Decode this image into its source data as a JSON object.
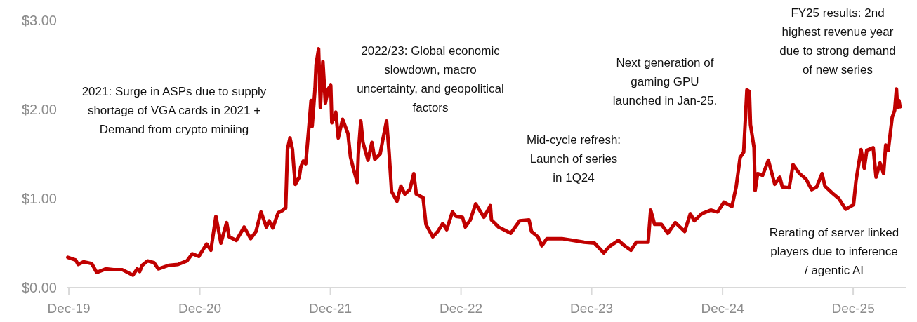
{
  "chart_data": {
    "type": "line",
    "color": "#c00000",
    "xlim": [
      "2019-11-25",
      "2026-04-27"
    ],
    "xticks": [
      {
        "value": "2019-12-01",
        "label": "Dec-19"
      },
      {
        "value": "2020-12-01",
        "label": "Dec-20"
      },
      {
        "value": "2021-12-01",
        "label": "Dec-21"
      },
      {
        "value": "2022-12-01",
        "label": "Dec-22"
      },
      {
        "value": "2023-12-01",
        "label": "Dec-23"
      },
      {
        "value": "2024-12-01",
        "label": "Dec-24"
      },
      {
        "value": "2025-12-01",
        "label": "Dec-25"
      }
    ],
    "ylim": [
      0,
      3
    ],
    "yticks": [
      {
        "value": 0,
        "label": "$0.00"
      },
      {
        "value": 1,
        "label": "$1.00"
      },
      {
        "value": 2,
        "label": "$2.00"
      },
      {
        "value": 3,
        "label": "$3.00"
      }
    ],
    "grid": false,
    "marker": "none",
    "line_style": "solid",
    "x": [
      "2019-11-28",
      "2019-12-20",
      "2019-12-27",
      "2020-01-11",
      "2020-02-03",
      "2020-02-17",
      "2020-03-13",
      "2020-04-04",
      "2020-04-29",
      "2020-05-28",
      "2020-06-09",
      "2020-06-16",
      "2020-06-23",
      "2020-07-08",
      "2020-07-26",
      "2020-08-07",
      "2020-09-05",
      "2020-10-01",
      "2020-10-26",
      "2020-11-10",
      "2020-11-28",
      "2020-12-20",
      "2021-01-01",
      "2021-01-15",
      "2021-01-29",
      "2021-02-14",
      "2021-02-21",
      "2021-03-13",
      "2021-04-04",
      "2021-04-22",
      "2021-05-07",
      "2021-05-21",
      "2021-06-05",
      "2021-06-13",
      "2021-06-23",
      "2021-07-08",
      "2021-07-22",
      "2021-07-26",
      "2021-07-29",
      "2021-08-03",
      "2021-08-10",
      "2021-08-17",
      "2021-08-21",
      "2021-08-25",
      "2021-09-05",
      "2021-09-09",
      "2021-09-16",
      "2021-09-23",
      "2021-10-01",
      "2021-10-08",
      "2021-10-11",
      "2021-10-19",
      "2021-10-22",
      "2021-10-29",
      "2021-11-03",
      "2021-11-07",
      "2021-11-10",
      "2021-11-17",
      "2021-11-25",
      "2021-12-02",
      "2021-12-05",
      "2021-12-16",
      "2021-12-23",
      "2022-01-04",
      "2022-01-19",
      "2022-01-26",
      "2022-02-03",
      "2022-02-14",
      "2022-02-17",
      "2022-02-24",
      "2022-03-02",
      "2022-03-16",
      "2022-03-27",
      "2022-04-04",
      "2022-04-19",
      "2022-04-26",
      "2022-05-07",
      "2022-05-14",
      "2022-05-21",
      "2022-06-05",
      "2022-06-16",
      "2022-06-27",
      "2022-07-11",
      "2022-07-22",
      "2022-07-29",
      "2022-08-17",
      "2022-08-25",
      "2022-09-13",
      "2022-09-27",
      "2022-10-11",
      "2022-10-22",
      "2022-11-07",
      "2022-11-17",
      "2022-12-05",
      "2022-12-13",
      "2022-12-27",
      "2023-01-11",
      "2023-02-03",
      "2023-02-21",
      "2023-02-24",
      "2023-03-16",
      "2023-04-19",
      "2023-05-14",
      "2023-06-09",
      "2023-06-16",
      "2023-07-04",
      "2023-07-15",
      "2023-07-29",
      "2023-09-09",
      "2023-10-11",
      "2023-11-10",
      "2023-12-09",
      "2024-01-04",
      "2024-01-19",
      "2024-02-14",
      "2024-03-02",
      "2024-03-20",
      "2024-04-04",
      "2024-05-07",
      "2024-05-14",
      "2024-05-25",
      "2024-06-13",
      "2024-07-01",
      "2024-07-22",
      "2024-08-17",
      "2024-09-02",
      "2024-09-13",
      "2024-10-04",
      "2024-10-29",
      "2024-11-17",
      "2024-12-05",
      "2024-12-27",
      "2025-01-08",
      "2025-01-19",
      "2025-01-29",
      "2025-02-07",
      "2025-02-14",
      "2025-02-17",
      "2025-02-27",
      "2025-03-02",
      "2025-03-09",
      "2025-03-23",
      "2025-04-08",
      "2025-04-26",
      "2025-05-10",
      "2025-05-17",
      "2025-06-05",
      "2025-06-16",
      "2025-07-04",
      "2025-07-22",
      "2025-08-07",
      "2025-08-21",
      "2025-09-05",
      "2025-09-13",
      "2025-10-04",
      "2025-10-22",
      "2025-11-10",
      "2025-12-02",
      "2025-12-09",
      "2025-12-23",
      "2026-01-01",
      "2026-01-08",
      "2026-01-26",
      "2026-02-03",
      "2026-02-14",
      "2026-02-24",
      "2026-03-02",
      "2026-03-09",
      "2026-03-20",
      "2026-03-27",
      "2026-04-01",
      "2026-04-04",
      "2026-04-08",
      "2026-04-11"
    ],
    "values": [
      0.34,
      0.31,
      0.26,
      0.29,
      0.27,
      0.17,
      0.21,
      0.2,
      0.2,
      0.14,
      0.21,
      0.18,
      0.25,
      0.3,
      0.28,
      0.21,
      0.25,
      0.26,
      0.3,
      0.38,
      0.35,
      0.49,
      0.42,
      0.8,
      0.5,
      0.73,
      0.57,
      0.53,
      0.68,
      0.55,
      0.63,
      0.85,
      0.68,
      0.75,
      0.67,
      0.84,
      0.87,
      0.89,
      0.89,
      1.55,
      1.68,
      1.55,
      1.34,
      1.16,
      1.24,
      1.35,
      1.42,
      1.39,
      1.76,
      2.1,
      1.81,
      2.23,
      2.5,
      2.68,
      2.02,
      2.36,
      2.54,
      2.07,
      2.23,
      2.27,
      1.85,
      1.97,
      1.68,
      1.89,
      1.73,
      1.47,
      1.34,
      1.18,
      1.5,
      1.87,
      1.63,
      1.43,
      1.63,
      1.44,
      1.5,
      1.65,
      1.87,
      1.52,
      1.08,
      0.97,
      1.14,
      1.05,
      1.1,
      1.28,
      1.05,
      1.01,
      0.71,
      0.57,
      0.63,
      0.72,
      0.65,
      0.85,
      0.8,
      0.79,
      0.68,
      0.76,
      0.94,
      0.79,
      0.92,
      0.76,
      0.68,
      0.61,
      0.75,
      0.76,
      0.63,
      0.57,
      0.47,
      0.55,
      0.55,
      0.53,
      0.51,
      0.5,
      0.39,
      0.46,
      0.53,
      0.47,
      0.42,
      0.51,
      0.51,
      0.87,
      0.71,
      0.71,
      0.61,
      0.73,
      0.63,
      0.83,
      0.75,
      0.83,
      0.87,
      0.85,
      0.96,
      0.91,
      1.13,
      1.46,
      1.52,
      2.22,
      2.2,
      1.83,
      1.57,
      1.09,
      1.28,
      1.26,
      1.43,
      1.16,
      1.24,
      1.13,
      1.12,
      1.38,
      1.28,
      1.22,
      1.1,
      1.13,
      1.28,
      1.14,
      1.06,
      1.0,
      0.88,
      0.93,
      1.2,
      1.55,
      1.34,
      1.54,
      1.57,
      1.24,
      1.4,
      1.28,
      1.6,
      1.54,
      1.91,
      1.99,
      2.23,
      2.02,
      2.1,
      2.03
    ],
    "annotations": [
      "2021: Surge in ASPs due to supply\nshortage of VGA cards in 2021 +\nDemand from crypto miniing",
      "2022/23: Global economic\nslowdown,  macro\nuncertainty, and geopolitical\nfactors",
      "Mid-cycle refresh:\nLaunch of series\nin 1Q24",
      "Next generation of\ngaming GPU\nlaunched in Jan-25.",
      "FY25 results: 2nd\nhighest revenue year\ndue to strong demand\nof new series",
      "Rerating of server linked\nplayers due to inference\n/ agentic AI"
    ]
  }
}
